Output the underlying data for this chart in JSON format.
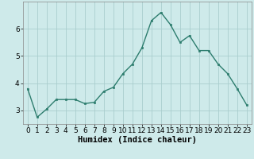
{
  "x": [
    0,
    1,
    2,
    3,
    4,
    5,
    6,
    7,
    8,
    9,
    10,
    11,
    12,
    13,
    14,
    15,
    16,
    17,
    18,
    19,
    20,
    21,
    22,
    23
  ],
  "y": [
    3.8,
    2.75,
    3.05,
    3.4,
    3.4,
    3.4,
    3.25,
    3.3,
    3.7,
    3.85,
    4.35,
    4.7,
    5.3,
    6.3,
    6.6,
    6.15,
    5.5,
    5.75,
    5.2,
    5.2,
    4.7,
    4.35,
    3.8,
    3.2
  ],
  "xlabel": "Humidex (Indice chaleur)",
  "ylim": [
    2.5,
    7.0
  ],
  "xlim": [
    -0.5,
    23.5
  ],
  "yticks": [
    3,
    4,
    5,
    6
  ],
  "xticks": [
    0,
    1,
    2,
    3,
    4,
    5,
    6,
    7,
    8,
    9,
    10,
    11,
    12,
    13,
    14,
    15,
    16,
    17,
    18,
    19,
    20,
    21,
    22,
    23
  ],
  "line_color": "#2d7d6e",
  "marker_color": "#2d7d6e",
  "bg_color": "#ceeaea",
  "grid_color": "#aacece",
  "xlabel_fontsize": 7.5,
  "tick_fontsize": 6.5
}
